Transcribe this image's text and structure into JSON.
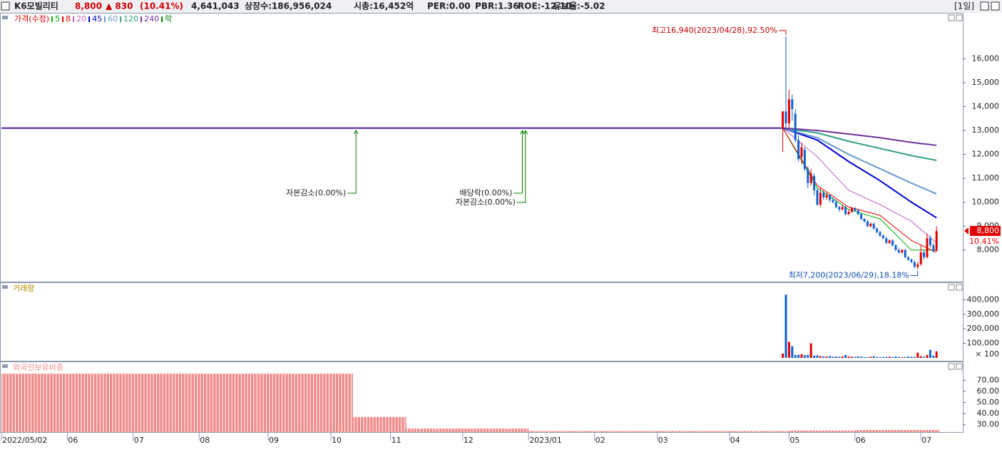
{
  "header": {
    "name": "K6모빌리티",
    "price": "8,800",
    "change": "▲ 830",
    "change_pct": "(10.41%)",
    "volume": "4,641,043",
    "listed": "상장수:186,956,024",
    "cap": "시총:16,452억",
    "per": "PER:0.00",
    "pbr": "PBR:1.36",
    "roe": "ROE:-12.10",
    "reserve": "유보율:-5.02",
    "period": "[1일]"
  },
  "chart_data": [
    {
      "type": "candlestick",
      "name": "가격(수정)",
      "up_color": "#e00000",
      "down_color": "#1060d0",
      "xlim": [
        0,
        306
      ],
      "ylim": [
        6680,
        17920
      ],
      "yticks": [
        {
          "value": 8000,
          "label": "8,000"
        },
        {
          "value": 9000,
          "label": "9,000"
        },
        {
          "value": 10000,
          "label": "10,000"
        },
        {
          "value": 11000,
          "label": "11,000"
        },
        {
          "value": 12000,
          "label": "12,000"
        },
        {
          "value": 13000,
          "label": "13,000"
        },
        {
          "value": 14000,
          "label": "14,000"
        },
        {
          "value": 15000,
          "label": "15,000"
        },
        {
          "value": 16000,
          "label": "16,000"
        }
      ],
      "x": [
        249,
        250,
        251,
        252,
        253,
        254,
        255,
        256,
        257,
        258,
        259,
        260,
        261,
        262,
        263,
        264,
        265,
        266,
        267,
        268,
        269,
        270,
        271,
        272,
        273,
        274,
        275,
        276,
        277,
        278,
        279,
        280,
        281,
        282,
        283,
        284,
        285,
        286,
        287,
        288,
        289,
        290,
        291,
        292,
        293,
        294,
        295,
        296,
        297,
        298
      ],
      "open": [
        13100,
        13800,
        13300,
        14300,
        13700,
        12600,
        11900,
        12200,
        11400,
        10800,
        11100,
        10500,
        9900,
        10400,
        10200,
        10300,
        10100,
        10000,
        9800,
        9700,
        9800,
        9500,
        9600,
        9750,
        9650,
        9500,
        9300,
        9200,
        9000,
        9100,
        8900,
        8750,
        8600,
        8500,
        8300,
        8400,
        8200,
        8000,
        7900,
        8000,
        7700,
        7600,
        7500,
        7300,
        7400,
        7900,
        7700,
        8500,
        8200,
        7970
      ],
      "high": [
        13800,
        16940,
        14700,
        14500,
        13900,
        12800,
        12500,
        12300,
        11500,
        11400,
        11200,
        10600,
        10600,
        10500,
        10400,
        10350,
        10200,
        10100,
        9850,
        9900,
        9850,
        9700,
        9800,
        9800,
        9700,
        9550,
        9350,
        9250,
        9150,
        9150,
        8950,
        8800,
        8650,
        8550,
        8450,
        8450,
        8250,
        8100,
        8050,
        8050,
        7750,
        7650,
        7550,
        7500,
        8200,
        8000,
        8700,
        8600,
        8300,
        9000
      ],
      "low": [
        12100,
        13000,
        13100,
        13400,
        12500,
        11700,
        11600,
        11300,
        10600,
        10700,
        10300,
        9850,
        9800,
        10100,
        10100,
        10000,
        9950,
        9750,
        9600,
        9650,
        9450,
        9450,
        9550,
        9600,
        9450,
        9250,
        9150,
        8950,
        8950,
        8850,
        8700,
        8550,
        8450,
        8250,
        8250,
        8150,
        7950,
        7850,
        7850,
        7650,
        7550,
        7450,
        7250,
        7200,
        7350,
        7600,
        7650,
        8100,
        7900,
        7950
      ],
      "close": [
        13800,
        13300,
        14300,
        13900,
        12600,
        11800,
        12300,
        11400,
        10800,
        11200,
        10500,
        9900,
        10400,
        10200,
        10300,
        10100,
        10000,
        9800,
        9700,
        9800,
        9500,
        9600,
        9750,
        9650,
        9500,
        9300,
        9200,
        9000,
        9100,
        8900,
        8750,
        8600,
        8500,
        8300,
        8400,
        8200,
        8000,
        7900,
        8000,
        7700,
        7600,
        7500,
        7300,
        7400,
        7900,
        7700,
        8500,
        8200,
        7970,
        8800
      ],
      "series": [
        {
          "name": "5",
          "color": "#00b000",
          "x": [
            0,
            249,
            260,
            270,
            280,
            290,
            298
          ],
          "values": [
            13100,
            13100,
            10600,
            9700,
            9300,
            8000,
            8000
          ]
        },
        {
          "name": "8",
          "color": "#e00000",
          "x": [
            0,
            249,
            260,
            270,
            280,
            290,
            298
          ],
          "values": [
            13100,
            13100,
            10700,
            9800,
            9450,
            8400,
            7900
          ]
        },
        {
          "name": "20",
          "color": "#c060c0",
          "x": [
            0,
            249,
            260,
            270,
            280,
            290,
            298
          ],
          "values": [
            13100,
            13100,
            11900,
            10500,
            9900,
            9200,
            8300
          ]
        },
        {
          "name": "45",
          "color": "#0000d0",
          "x": [
            0,
            249,
            260,
            270,
            280,
            290,
            298
          ],
          "values": [
            13100,
            13100,
            12600,
            11700,
            10900,
            10000,
            9350
          ]
        },
        {
          "name": "60",
          "color": "#6a9ad0",
          "x": [
            0,
            249,
            260,
            270,
            280,
            290,
            298
          ],
          "values": [
            13100,
            13100,
            12700,
            12000,
            11400,
            10800,
            10350
          ]
        },
        {
          "name": "120",
          "color": "#30a080",
          "x": [
            0,
            249,
            260,
            270,
            280,
            290,
            298
          ],
          "values": [
            13100,
            13100,
            12900,
            12550,
            12250,
            11950,
            11750
          ]
        },
        {
          "name": "240",
          "color": "#7030a0",
          "x": [
            0,
            249,
            260,
            270,
            280,
            290,
            298
          ],
          "values": [
            13100,
            13100,
            13000,
            12850,
            12700,
            12500,
            12380
          ]
        }
      ],
      "event_legend": "락",
      "event_color": "#008000",
      "events": [
        {
          "text": "자본감소(0.00%)",
          "x": 113,
          "y": 13000
        },
        {
          "text": "배당락(0.00%)",
          "x": 166,
          "y": 13000
        },
        {
          "text": "자본감소(0.00%)",
          "x": 167,
          "y": 13000
        }
      ],
      "annotations": [
        {
          "text": "최고16,940(2023/04/28),92.50%",
          "x": 250,
          "y": 16940,
          "color": "#c00000"
        },
        {
          "text": "최저7,200(2023/06/29),18.18%",
          "x": 292,
          "y": 7200,
          "color": "#1050b0"
        }
      ],
      "last_change": "10.41%"
    },
    {
      "type": "bar",
      "name": "거래량",
      "xlim": [
        0,
        306
      ],
      "ylim": [
        -20000,
        520000
      ],
      "unit_label": "× 100",
      "yticks": [
        {
          "value": 100000,
          "label": "100,000"
        },
        {
          "value": 200000,
          "label": "200,000"
        },
        {
          "value": 300000,
          "label": "300,000"
        },
        {
          "value": 400000,
          "label": "400,000"
        }
      ],
      "x": [
        249,
        250,
        251,
        252,
        253,
        254,
        255,
        256,
        257,
        258,
        259,
        260,
        261,
        262,
        263,
        264,
        265,
        266,
        267,
        268,
        269,
        270,
        271,
        272,
        273,
        274,
        275,
        276,
        277,
        278,
        279,
        280,
        281,
        282,
        283,
        284,
        285,
        286,
        287,
        288,
        289,
        290,
        291,
        292,
        293,
        294,
        295,
        296,
        297,
        298
      ],
      "values": [
        30000,
        435000,
        110000,
        80000,
        20000,
        22000,
        25000,
        18000,
        20000,
        100000,
        15000,
        18000,
        12000,
        10000,
        9000,
        12000,
        8000,
        9000,
        8000,
        10000,
        20000,
        9000,
        8000,
        7000,
        10000,
        8000,
        6000,
        5000,
        8000,
        12000,
        6000,
        5000,
        6000,
        7000,
        8000,
        6000,
        10000,
        7000,
        5000,
        6000,
        9000,
        8000,
        7000,
        35000,
        12000,
        8000,
        20000,
        55000,
        15000,
        45000
      ]
    },
    {
      "type": "histogram",
      "name": "외국인보유비중",
      "color": "#f08a8a",
      "xlim": [
        0,
        306
      ],
      "ylim": [
        23.4,
        87
      ],
      "yticks": [
        {
          "value": 30,
          "label": "30.00"
        },
        {
          "value": 40,
          "label": "40.00"
        },
        {
          "value": 50,
          "label": "50.00"
        },
        {
          "value": 60,
          "label": "60.00"
        },
        {
          "value": 70,
          "label": "70.00"
        }
      ],
      "bins": [
        0,
        112,
        129,
        168,
        251,
        272,
        299
      ],
      "values": [
        76,
        37,
        26.5,
        24.3,
        24.8,
        25.3
      ],
      "xticks": [
        {
          "value": 0,
          "label": "2022/05/02"
        },
        {
          "value": 21,
          "label": "06"
        },
        {
          "value": 42,
          "label": "07"
        },
        {
          "value": 63,
          "label": "08"
        },
        {
          "value": 85,
          "label": "09"
        },
        {
          "value": 105,
          "label": "10"
        },
        {
          "value": 124,
          "label": "11"
        },
        {
          "value": 147,
          "label": "12"
        },
        {
          "value": 168,
          "label": "2023/01"
        },
        {
          "value": 189,
          "label": "02"
        },
        {
          "value": 209,
          "label": "03"
        },
        {
          "value": 232,
          "label": "04"
        },
        {
          "value": 251,
          "label": "05"
        },
        {
          "value": 272,
          "label": "06"
        },
        {
          "value": 293,
          "label": "07"
        }
      ]
    }
  ]
}
